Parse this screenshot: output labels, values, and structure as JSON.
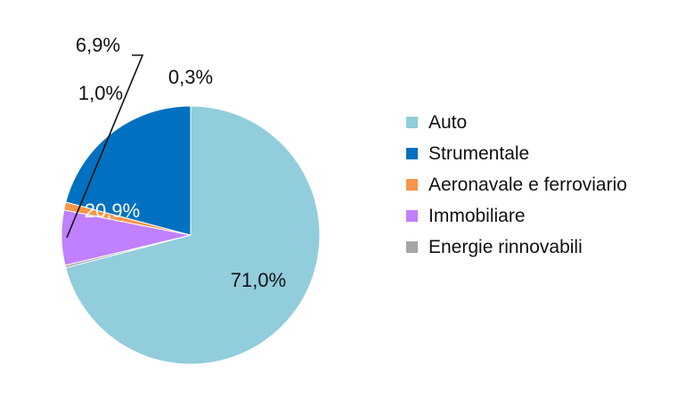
{
  "chart_data": {
    "type": "pie",
    "title": "",
    "categories": [
      "Auto",
      "Strumentale",
      "Aeronavale e ferroviario",
      "Immobiliare",
      "Energie rinnovabili"
    ],
    "values": [
      71.0,
      20.9,
      1.0,
      6.9,
      0.3
    ],
    "labels": [
      "71,0%",
      "20,9%",
      "1,0%",
      "6,9%",
      "0,3%"
    ],
    "colors": [
      "#92cddc",
      "#0070c0",
      "#f79646",
      "#c080ff",
      "#a6a6a6"
    ],
    "label_colors": [
      "#111111",
      "#ffffff",
      "#111111",
      "#111111",
      "#111111"
    ],
    "legend_position": "right"
  }
}
